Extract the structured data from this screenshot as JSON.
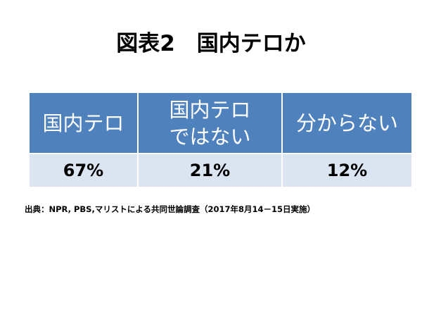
{
  "header": {
    "title": "図表2　国内テロか"
  },
  "table": {
    "headers": [
      [
        "国内テロ"
      ],
      [
        "国内テロ",
        "ではない"
      ],
      [
        "分からない"
      ]
    ],
    "rows": [
      [
        "67%",
        "21%",
        "12%"
      ]
    ]
  },
  "source": "出典：NPR, PBS,マリストによる共同世論調査（2017年8月14－15日実施）"
}
